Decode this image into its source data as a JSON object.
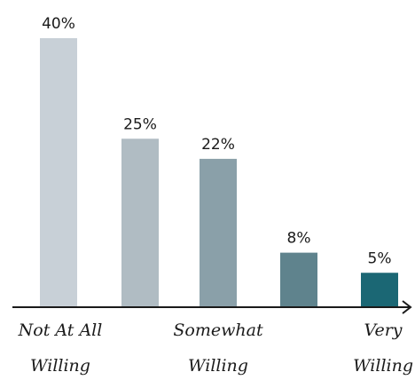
{
  "chart_data": {
    "type": "bar",
    "title": "",
    "xlabel": "",
    "ylabel": "",
    "ylim": [
      0,
      40
    ],
    "grid": false,
    "categories": [
      "Not At All Willing",
      "",
      "Somewhat Willing",
      "",
      "Very Willing"
    ],
    "category_label_lines": [
      [
        "Not At All",
        "Willing"
      ],
      [],
      [
        "Somewhat",
        "Willing"
      ],
      [],
      [
        "Very",
        "Willing"
      ]
    ],
    "values": [
      40,
      25,
      22,
      8,
      5
    ],
    "value_labels": [
      "40%",
      "25%",
      "22%",
      "8%",
      "5%"
    ],
    "colors": [
      "#c8d0d7",
      "#b0bcc3",
      "#8aa0a9",
      "#5f838d",
      "#1b6774"
    ],
    "axis_color": "#1a1a1a"
  }
}
